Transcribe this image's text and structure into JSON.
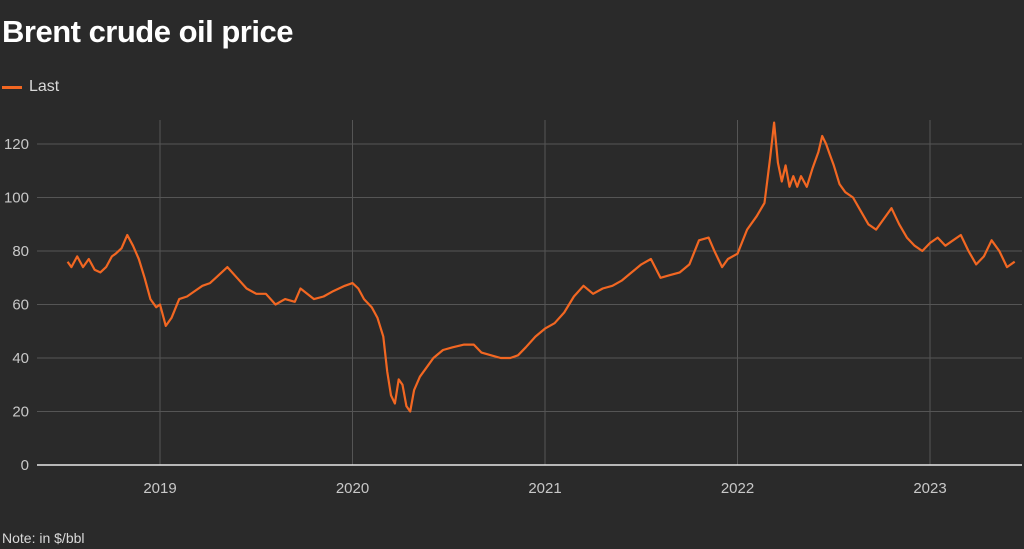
{
  "title": "Brent crude oil price",
  "note": "Note: in $/bbl",
  "chart_data": {
    "type": "line",
    "title": "Brent crude oil price",
    "xlabel": "",
    "ylabel": "",
    "ylim": [
      0,
      128
    ],
    "yticks": [
      0,
      20,
      40,
      60,
      80,
      100,
      120
    ],
    "xticks": [
      2019,
      2020,
      2021,
      2022,
      2023
    ],
    "xlim": [
      2018.5,
      2023.47
    ],
    "grid": true,
    "legend_position": "top-left",
    "line_color": "#f26722",
    "series": [
      {
        "name": "Last",
        "x": [
          2018.52,
          2018.54,
          2018.57,
          2018.6,
          2018.63,
          2018.66,
          2018.69,
          2018.72,
          2018.75,
          2018.77,
          2018.8,
          2018.83,
          2018.86,
          2018.89,
          2018.92,
          2018.95,
          2018.98,
          2019.0,
          2019.03,
          2019.06,
          2019.1,
          2019.14,
          2019.18,
          2019.22,
          2019.26,
          2019.29,
          2019.32,
          2019.35,
          2019.4,
          2019.45,
          2019.5,
          2019.55,
          2019.6,
          2019.65,
          2019.7,
          2019.73,
          2019.8,
          2019.85,
          2019.9,
          2019.96,
          2020.0,
          2020.03,
          2020.06,
          2020.1,
          2020.13,
          2020.16,
          2020.18,
          2020.2,
          2020.22,
          2020.24,
          2020.26,
          2020.28,
          2020.3,
          2020.32,
          2020.35,
          2020.38,
          2020.42,
          2020.47,
          2020.52,
          2020.58,
          2020.63,
          2020.67,
          2020.72,
          2020.77,
          2020.82,
          2020.86,
          2020.9,
          2020.95,
          2021.0,
          2021.05,
          2021.1,
          2021.15,
          2021.2,
          2021.25,
          2021.3,
          2021.35,
          2021.4,
          2021.45,
          2021.5,
          2021.55,
          2021.6,
          2021.65,
          2021.7,
          2021.75,
          2021.8,
          2021.85,
          2021.88,
          2021.92,
          2021.95,
          2022.0,
          2022.05,
          2022.1,
          2022.14,
          2022.17,
          2022.19,
          2022.21,
          2022.23,
          2022.25,
          2022.27,
          2022.29,
          2022.31,
          2022.33,
          2022.36,
          2022.39,
          2022.42,
          2022.44,
          2022.46,
          2022.48,
          2022.5,
          2022.53,
          2022.56,
          2022.6,
          2022.64,
          2022.68,
          2022.72,
          2022.76,
          2022.8,
          2022.84,
          2022.88,
          2022.92,
          2022.96,
          2023.0,
          2023.04,
          2023.08,
          2023.12,
          2023.16,
          2023.2,
          2023.24,
          2023.28,
          2023.32,
          2023.36,
          2023.4,
          2023.44
        ],
        "y": [
          76,
          74,
          78,
          74,
          77,
          73,
          72,
          74,
          78,
          79,
          81,
          86,
          82,
          77,
          70,
          62,
          59,
          60,
          52,
          55,
          62,
          63,
          65,
          67,
          68,
          70,
          72,
          74,
          70,
          66,
          64,
          64,
          60,
          62,
          61,
          66,
          62,
          63,
          65,
          67,
          68,
          66,
          62,
          59,
          55,
          48,
          35,
          26,
          23,
          32,
          30,
          22,
          20,
          28,
          33,
          36,
          40,
          43,
          44,
          45,
          45,
          42,
          41,
          40,
          40,
          41,
          44,
          48,
          51,
          53,
          57,
          63,
          67,
          64,
          66,
          67,
          69,
          72,
          75,
          77,
          70,
          71,
          72,
          75,
          84,
          85,
          80,
          74,
          77,
          79,
          88,
          93,
          98,
          115,
          128,
          113,
          106,
          112,
          104,
          108,
          104,
          108,
          104,
          111,
          117,
          123,
          120,
          116,
          112,
          105,
          102,
          100,
          95,
          90,
          88,
          92,
          96,
          90,
          85,
          82,
          80,
          83,
          85,
          82,
          84,
          86,
          80,
          75,
          78,
          84,
          80,
          74,
          76
        ]
      }
    ]
  }
}
